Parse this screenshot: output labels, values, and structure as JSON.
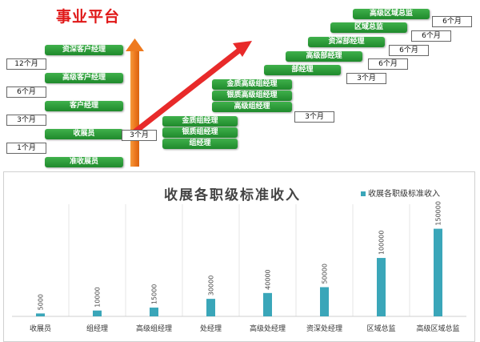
{
  "platform_title": "事业平台",
  "ladder_left": {
    "positions": [
      "资深客户经理",
      "高级客户经理",
      "客户经理",
      "收展员",
      "准收展员"
    ],
    "durations": [
      "12个月",
      "6个月",
      "3个月",
      "1个月"
    ]
  },
  "ladder_middle": {
    "start_duration": "3个月",
    "tier1": [
      "金质组经理",
      "银质组经理",
      "组经理"
    ],
    "tier2": [
      "金质高级组经理",
      "银质高级组经理",
      "高级组经理"
    ],
    "tier2_duration": "3个月"
  },
  "ladder_right": {
    "positions": [
      "部经理",
      "高级部经理",
      "资深部经理",
      "区域总监",
      "高级区域总监"
    ],
    "durations": [
      "3个月",
      "6个月",
      "6个月",
      "6个月",
      "6个月"
    ]
  },
  "colors": {
    "arrow_up": "#ee7a1f",
    "arrow_diag": "#e82a2a",
    "button_green": "#2e9e3b",
    "bar": "#3aa6b9"
  },
  "chart_data": {
    "type": "bar",
    "title": "收展各职级标准收入",
    "legend": "收展各职级标准收入",
    "legend_position": "top-right",
    "categories": [
      "收展员",
      "组经理",
      "高级组经理",
      "处经理",
      "高级处经理",
      "资深处经理",
      "区域总监",
      "高级区域总监"
    ],
    "series": [
      {
        "name": "收展各职级标准收入",
        "values": [
          5000,
          10000,
          15000,
          30000,
          40000,
          50000,
          100000,
          150000
        ]
      }
    ],
    "value_labels": [
      "5000",
      "10000",
      "15000",
      "30000",
      "40000",
      "50000",
      "100000",
      "150000"
    ],
    "ylim": [
      0,
      170000
    ],
    "grid": "vertical separators"
  }
}
